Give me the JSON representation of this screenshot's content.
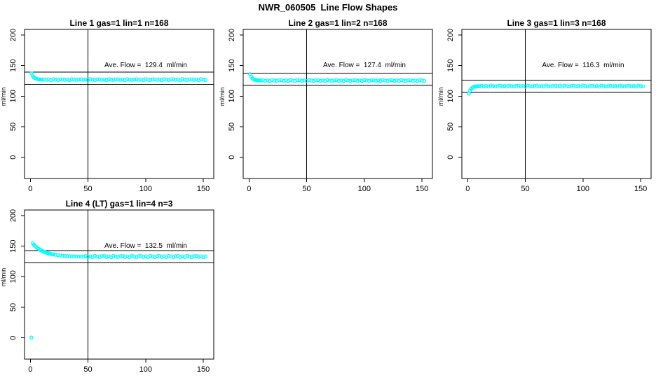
{
  "title": "NWR_060505  Line Flow Shapes",
  "colors": {
    "points": "#00FFFF",
    "axis": "#000000",
    "background": "#FFFFFF"
  },
  "chart_data": [
    {
      "type": "scatter",
      "title": "Line 1 gas=1 lin=1 n=168",
      "annotation": "Ave. Flow =  129.4  ml/min",
      "ave_flow_ml_min": 129.4,
      "ref_hlines": [
        139.4,
        119.4
      ],
      "ref_vline_x": 50,
      "xlabel": "",
      "ylabel": "ml/min",
      "xlim": [
        -5,
        159
      ],
      "ylim": [
        -35,
        209
      ],
      "x_ticks": [
        0,
        50,
        100,
        150
      ],
      "y_ticks": [
        0,
        50,
        100,
        150,
        200
      ],
      "marker": "open-circle",
      "marker_color": "#00FFFF",
      "points": [
        [
          1,
          137.5
        ],
        [
          2,
          133.5
        ],
        [
          3,
          131.0
        ],
        [
          4,
          129.5
        ],
        [
          5,
          128.6
        ],
        [
          6,
          128.0
        ],
        [
          7,
          127.6
        ],
        [
          8,
          127.4
        ],
        [
          9,
          127.2
        ],
        [
          10,
          127.1
        ],
        [
          12,
          127.6
        ],
        [
          14,
          126.6
        ],
        [
          16,
          127.2
        ],
        [
          18,
          126.2
        ],
        [
          20,
          127.9
        ],
        [
          22,
          127.0
        ],
        [
          24,
          126.4
        ],
        [
          26,
          127.4
        ],
        [
          28,
          127.6
        ],
        [
          30,
          126.6
        ],
        [
          32,
          127.2
        ],
        [
          34,
          126.2
        ],
        [
          36,
          127.9
        ],
        [
          38,
          127.0
        ],
        [
          40,
          126.4
        ],
        [
          42,
          127.4
        ],
        [
          44,
          127.6
        ],
        [
          46,
          126.6
        ],
        [
          48,
          127.2
        ],
        [
          50,
          126.2
        ],
        [
          52,
          127.9
        ],
        [
          54,
          127.0
        ],
        [
          56,
          126.4
        ],
        [
          58,
          127.4
        ],
        [
          60,
          127.6
        ],
        [
          62,
          126.6
        ],
        [
          64,
          127.2
        ],
        [
          66,
          126.2
        ],
        [
          68,
          127.9
        ],
        [
          70,
          127.0
        ],
        [
          72,
          126.4
        ],
        [
          74,
          127.4
        ],
        [
          76,
          127.6
        ],
        [
          78,
          126.6
        ],
        [
          80,
          127.2
        ],
        [
          82,
          126.2
        ],
        [
          84,
          127.9
        ],
        [
          86,
          127.0
        ],
        [
          88,
          126.4
        ],
        [
          90,
          127.4
        ],
        [
          92,
          127.6
        ],
        [
          94,
          126.6
        ],
        [
          96,
          127.2
        ],
        [
          98,
          126.2
        ],
        [
          100,
          127.9
        ],
        [
          102,
          127.0
        ],
        [
          104,
          126.4
        ],
        [
          106,
          127.4
        ],
        [
          108,
          127.6
        ],
        [
          110,
          126.6
        ],
        [
          112,
          127.2
        ],
        [
          114,
          126.2
        ],
        [
          116,
          127.9
        ],
        [
          118,
          127.0
        ],
        [
          120,
          126.4
        ],
        [
          122,
          127.4
        ],
        [
          124,
          127.6
        ],
        [
          126,
          126.6
        ],
        [
          128,
          127.2
        ],
        [
          130,
          126.2
        ],
        [
          132,
          127.9
        ],
        [
          134,
          127.0
        ],
        [
          136,
          126.4
        ],
        [
          138,
          127.4
        ],
        [
          140,
          127.6
        ],
        [
          142,
          126.6
        ],
        [
          144,
          127.2
        ],
        [
          146,
          126.2
        ],
        [
          148,
          127.9
        ],
        [
          150,
          127.0
        ],
        [
          152,
          126.4
        ]
      ]
    },
    {
      "type": "scatter",
      "title": "Line 2 gas=1 lin=2 n=168",
      "annotation": "Ave. Flow =  127.4  ml/min",
      "ave_flow_ml_min": 127.4,
      "ref_hlines": [
        137.4,
        117.4
      ],
      "ref_vline_x": 50,
      "xlabel": "",
      "ylabel": "ml/min",
      "xlim": [
        -5,
        159
      ],
      "ylim": [
        -35,
        209
      ],
      "x_ticks": [
        0,
        50,
        100,
        150
      ],
      "y_ticks": [
        0,
        50,
        100,
        150,
        200
      ],
      "marker": "open-circle",
      "marker_color": "#00FFFF",
      "points": [
        [
          1,
          136.0
        ],
        [
          2,
          131.5
        ],
        [
          3,
          129.0
        ],
        [
          4,
          127.6
        ],
        [
          5,
          126.8
        ],
        [
          6,
          126.3
        ],
        [
          7,
          126.0
        ],
        [
          8,
          125.8
        ],
        [
          9,
          125.7
        ],
        [
          10,
          125.6
        ],
        [
          12,
          126.1
        ],
        [
          14,
          125.1
        ],
        [
          16,
          125.7
        ],
        [
          18,
          124.7
        ],
        [
          20,
          126.4
        ],
        [
          22,
          125.5
        ],
        [
          24,
          124.9
        ],
        [
          26,
          125.9
        ],
        [
          28,
          126.1
        ],
        [
          30,
          125.1
        ],
        [
          32,
          125.7
        ],
        [
          34,
          124.7
        ],
        [
          36,
          126.4
        ],
        [
          38,
          125.5
        ],
        [
          40,
          124.9
        ],
        [
          42,
          125.9
        ],
        [
          44,
          126.1
        ],
        [
          46,
          125.1
        ],
        [
          48,
          125.7
        ],
        [
          50,
          124.7
        ],
        [
          52,
          126.4
        ],
        [
          54,
          125.5
        ],
        [
          56,
          124.9
        ],
        [
          58,
          125.9
        ],
        [
          60,
          126.1
        ],
        [
          62,
          125.1
        ],
        [
          64,
          125.7
        ],
        [
          66,
          124.7
        ],
        [
          68,
          126.4
        ],
        [
          70,
          125.5
        ],
        [
          72,
          124.9
        ],
        [
          74,
          125.9
        ],
        [
          76,
          126.1
        ],
        [
          78,
          125.1
        ],
        [
          80,
          125.7
        ],
        [
          82,
          124.7
        ],
        [
          84,
          126.4
        ],
        [
          86,
          125.5
        ],
        [
          88,
          124.9
        ],
        [
          90,
          125.9
        ],
        [
          92,
          126.1
        ],
        [
          94,
          125.1
        ],
        [
          96,
          125.7
        ],
        [
          98,
          124.7
        ],
        [
          100,
          126.4
        ],
        [
          102,
          125.5
        ],
        [
          104,
          124.9
        ],
        [
          106,
          125.9
        ],
        [
          108,
          126.1
        ],
        [
          110,
          125.1
        ],
        [
          112,
          125.7
        ],
        [
          114,
          124.7
        ],
        [
          116,
          126.4
        ],
        [
          118,
          125.5
        ],
        [
          120,
          124.9
        ],
        [
          122,
          125.9
        ],
        [
          124,
          126.1
        ],
        [
          126,
          125.1
        ],
        [
          128,
          125.7
        ],
        [
          130,
          124.7
        ],
        [
          132,
          126.4
        ],
        [
          134,
          125.5
        ],
        [
          136,
          124.9
        ],
        [
          138,
          125.9
        ],
        [
          140,
          126.1
        ],
        [
          142,
          125.1
        ],
        [
          144,
          125.7
        ],
        [
          146,
          124.7
        ],
        [
          148,
          126.4
        ],
        [
          150,
          125.5
        ],
        [
          152,
          124.9
        ]
      ]
    },
    {
      "type": "scatter",
      "title": "Line 3 gas=1 lin=3 n=168",
      "annotation": "Ave. Flow =  116.3  ml/min",
      "ave_flow_ml_min": 116.3,
      "ref_hlines": [
        126.3,
        106.3
      ],
      "ref_vline_x": 50,
      "xlabel": "",
      "ylabel": "ml/min",
      "xlim": [
        -5,
        159
      ],
      "ylim": [
        -35,
        209
      ],
      "x_ticks": [
        0,
        50,
        100,
        150
      ],
      "y_ticks": [
        0,
        50,
        100,
        150,
        200
      ],
      "marker": "open-circle",
      "marker_color": "#00FFFF",
      "points": [
        [
          1,
          104.0
        ],
        [
          2,
          109.0
        ],
        [
          3,
          112.0
        ],
        [
          4,
          113.8
        ],
        [
          5,
          114.9
        ],
        [
          6,
          115.5
        ],
        [
          7,
          115.8
        ],
        [
          8,
          116.0
        ],
        [
          9,
          116.1
        ],
        [
          10,
          116.2
        ],
        [
          12,
          117.0
        ],
        [
          14,
          116.0
        ],
        [
          16,
          116.6
        ],
        [
          18,
          115.6
        ],
        [
          20,
          117.3
        ],
        [
          22,
          116.4
        ],
        [
          24,
          115.8
        ],
        [
          26,
          116.8
        ],
        [
          28,
          117.0
        ],
        [
          30,
          116.0
        ],
        [
          32,
          116.6
        ],
        [
          34,
          115.6
        ],
        [
          36,
          117.3
        ],
        [
          38,
          116.4
        ],
        [
          40,
          115.8
        ],
        [
          42,
          116.8
        ],
        [
          44,
          117.0
        ],
        [
          46,
          116.0
        ],
        [
          48,
          116.6
        ],
        [
          50,
          115.6
        ],
        [
          52,
          117.3
        ],
        [
          54,
          116.4
        ],
        [
          56,
          115.8
        ],
        [
          58,
          116.8
        ],
        [
          60,
          117.0
        ],
        [
          62,
          116.0
        ],
        [
          64,
          116.6
        ],
        [
          66,
          115.6
        ],
        [
          68,
          117.3
        ],
        [
          70,
          116.4
        ],
        [
          72,
          115.8
        ],
        [
          74,
          116.8
        ],
        [
          76,
          117.0
        ],
        [
          78,
          116.0
        ],
        [
          80,
          116.6
        ],
        [
          82,
          115.6
        ],
        [
          84,
          117.3
        ],
        [
          86,
          116.4
        ],
        [
          88,
          115.8
        ],
        [
          90,
          116.8
        ],
        [
          92,
          117.0
        ],
        [
          94,
          116.0
        ],
        [
          96,
          116.6
        ],
        [
          98,
          115.6
        ],
        [
          100,
          117.3
        ],
        [
          102,
          116.4
        ],
        [
          104,
          115.8
        ],
        [
          106,
          116.8
        ],
        [
          108,
          117.0
        ],
        [
          110,
          116.0
        ],
        [
          112,
          116.6
        ],
        [
          114,
          115.6
        ],
        [
          116,
          117.3
        ],
        [
          118,
          116.4
        ],
        [
          120,
          115.8
        ],
        [
          122,
          116.8
        ],
        [
          124,
          117.0
        ],
        [
          126,
          116.0
        ],
        [
          128,
          116.6
        ],
        [
          130,
          115.6
        ],
        [
          132,
          117.3
        ],
        [
          134,
          116.4
        ],
        [
          136,
          115.8
        ],
        [
          138,
          116.8
        ],
        [
          140,
          117.0
        ],
        [
          142,
          116.0
        ],
        [
          144,
          116.6
        ],
        [
          146,
          115.6
        ],
        [
          148,
          117.3
        ],
        [
          150,
          116.4
        ],
        [
          152,
          115.8
        ]
      ]
    },
    {
      "type": "scatter",
      "title": "Line 4 (LT) gas=1 lin=4 n=3",
      "annotation": "Ave. Flow =  132.5  ml/min",
      "ave_flow_ml_min": 132.5,
      "ref_hlines": [
        142.5,
        122.5
      ],
      "ref_vline_x": 50,
      "xlabel": "",
      "ylabel": "ml/min",
      "xlim": [
        -5,
        159
      ],
      "ylim": [
        -35,
        209
      ],
      "x_ticks": [
        0,
        50,
        100,
        150
      ],
      "y_ticks": [
        0,
        50,
        100,
        150,
        200
      ],
      "marker": "open-circle",
      "marker_color": "#00FFFF",
      "points": [
        [
          1,
          0.5
        ],
        [
          2,
          155.0
        ],
        [
          3,
          152.5
        ],
        [
          4,
          150.6
        ],
        [
          5,
          148.8
        ],
        [
          6,
          147.2
        ],
        [
          7,
          145.8
        ],
        [
          8,
          144.5
        ],
        [
          9,
          143.4
        ],
        [
          10,
          142.4
        ],
        [
          11,
          141.5
        ],
        [
          12,
          140.7
        ],
        [
          13,
          140.0
        ],
        [
          14,
          139.3
        ],
        [
          15,
          138.7
        ],
        [
          16,
          138.2
        ],
        [
          17,
          137.7
        ],
        [
          18,
          137.2
        ],
        [
          19,
          136.8
        ],
        [
          20,
          136.4
        ],
        [
          22,
          135.8
        ],
        [
          24,
          135.2
        ],
        [
          26,
          134.7
        ],
        [
          28,
          134.3
        ],
        [
          30,
          134.0
        ],
        [
          32,
          133.7
        ],
        [
          34,
          133.5
        ],
        [
          36,
          133.3
        ],
        [
          38,
          133.2
        ],
        [
          40,
          133.1
        ],
        [
          42,
          133.0
        ],
        [
          44,
          132.9
        ],
        [
          46,
          132.9
        ],
        [
          48,
          134.0
        ],
        [
          50,
          132.2
        ],
        [
          52,
          133.4
        ],
        [
          54,
          131.8
        ],
        [
          56,
          134.3
        ],
        [
          58,
          133.0
        ],
        [
          60,
          132.1
        ],
        [
          62,
          133.7
        ],
        [
          64,
          134.0
        ],
        [
          66,
          132.2
        ],
        [
          68,
          133.4
        ],
        [
          70,
          131.8
        ],
        [
          72,
          134.3
        ],
        [
          74,
          133.0
        ],
        [
          76,
          132.1
        ],
        [
          78,
          133.7
        ],
        [
          80,
          134.0
        ],
        [
          82,
          132.2
        ],
        [
          84,
          133.4
        ],
        [
          86,
          131.8
        ],
        [
          88,
          134.3
        ],
        [
          90,
          133.0
        ],
        [
          92,
          132.1
        ],
        [
          94,
          133.7
        ],
        [
          96,
          134.0
        ],
        [
          98,
          132.2
        ],
        [
          100,
          133.4
        ],
        [
          102,
          131.8
        ],
        [
          104,
          134.3
        ],
        [
          106,
          133.0
        ],
        [
          108,
          132.1
        ],
        [
          110,
          133.7
        ],
        [
          112,
          134.0
        ],
        [
          114,
          132.2
        ],
        [
          116,
          133.4
        ],
        [
          118,
          131.8
        ],
        [
          120,
          134.3
        ],
        [
          122,
          133.0
        ],
        [
          124,
          132.1
        ],
        [
          126,
          133.7
        ],
        [
          128,
          134.0
        ],
        [
          130,
          132.2
        ],
        [
          132,
          133.4
        ],
        [
          134,
          131.8
        ],
        [
          136,
          134.3
        ],
        [
          138,
          133.0
        ],
        [
          140,
          132.1
        ],
        [
          142,
          133.7
        ],
        [
          144,
          134.0
        ],
        [
          146,
          132.2
        ],
        [
          148,
          133.4
        ],
        [
          150,
          131.8
        ],
        [
          152,
          133.2
        ]
      ]
    }
  ]
}
